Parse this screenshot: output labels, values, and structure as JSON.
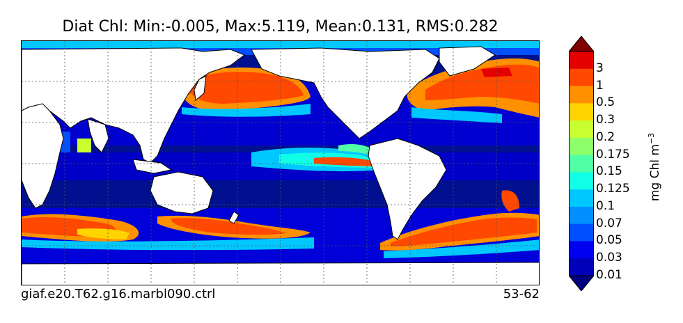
{
  "title": "Diat Chl: Min:-0.005, Max:5.119, Mean:0.131, RMS:0.282",
  "run_label": "giaf.e20.T62.g16.marbl090.ctrl",
  "years_label": "53-62",
  "colorbar": {
    "title_base": "mg Chl m",
    "title_exp": "−3",
    "tick_labels": [
      "3",
      "1",
      "0.5",
      "0.3",
      "0.2",
      "0.175",
      "0.15",
      "0.125",
      "0.1",
      "0.07",
      "0.05",
      "0.03",
      "0.01"
    ],
    "colors": [
      "#00007f",
      "#0000b8",
      "#0000f0",
      "#0050ff",
      "#0090ff",
      "#00c8ff",
      "#10ffe6",
      "#50ffa6",
      "#8cff6a",
      "#c8ff2e",
      "#ffd400",
      "#ff9000",
      "#ff4800",
      "#e50000",
      "#7f0000"
    ]
  },
  "chart_data": {
    "type": "heatmap",
    "title": "Diat Chl: Min:-0.005, Max:5.119, Mean:0.131, RMS:0.282",
    "variable": "Diat Chl",
    "units": "mg Chl m-3",
    "min": -0.005,
    "max": 5.119,
    "mean": 0.131,
    "rms": 0.282,
    "levels": [
      0.01,
      0.03,
      0.05,
      0.07,
      0.1,
      0.125,
      0.15,
      0.175,
      0.2,
      0.3,
      0.5,
      1,
      3
    ],
    "colorbar_extend": "both"
  }
}
